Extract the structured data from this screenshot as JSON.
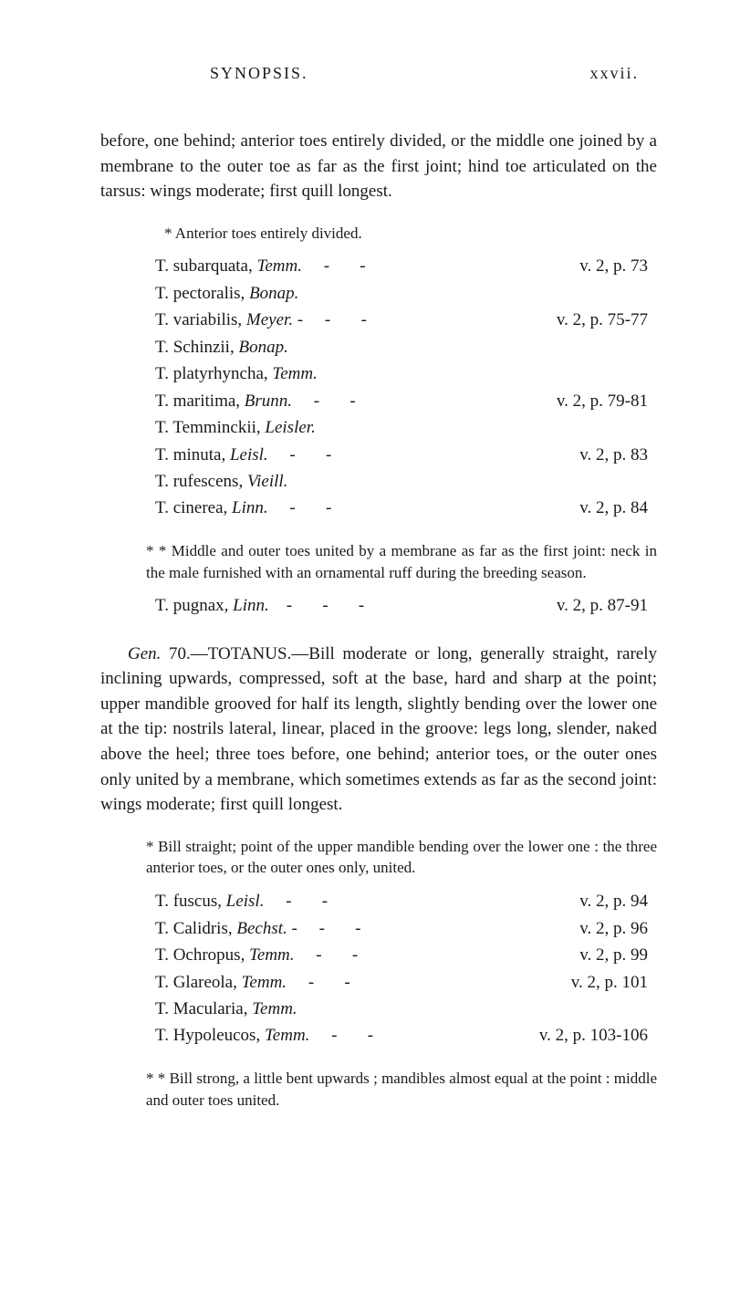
{
  "header": {
    "left": "SYNOPSIS.",
    "right": "xxvii."
  },
  "intro1": "before, one behind; anterior toes entirely divided, or the middle one joined by a membrane to the outer toe as far as the first joint; hind toe articulated on the tarsus: wings moderate; first quill longest.",
  "noteA": "* Anterior toes entirely divided.",
  "speciesA": [
    {
      "name": "T. subarquata, ",
      "auth": "Temm.",
      "ref": "v. 2, p. 73"
    },
    {
      "name": "T. pectoralis, ",
      "auth": "Bonap.",
      "ref": ""
    },
    {
      "name": "T. variabilis, ",
      "auth": "Meyer.",
      "suffix": " -",
      "ref": "v. 2, p. 75-77"
    },
    {
      "name": "T. Schinzii, ",
      "auth": "Bonap.",
      "ref": ""
    },
    {
      "name": "T. platyrhyncha, ",
      "auth": "Temm.",
      "ref": ""
    },
    {
      "name": "T. maritima, ",
      "auth": "Brunn.",
      "ref": "v. 2, p. 79-81"
    },
    {
      "name": "T. Temminckii, ",
      "auth": "Leisler.",
      "ref": ""
    },
    {
      "name": "T. minuta, ",
      "auth": "Leisl.",
      "ref": "v. 2, p. 83"
    },
    {
      "name": "T. rufescens, ",
      "auth": "Vieill.",
      "ref": ""
    },
    {
      "name": "T. cinerea, ",
      "auth": "Linn.",
      "ref": "v. 2, p. 84"
    }
  ],
  "noteB": "* * Middle and outer toes united by a membrane as far as the first joint: neck in the male furnished with an ornamental ruff during the breeding season.",
  "speciesB": {
    "name": "T. pugnax, ",
    "auth": "Linn.",
    "ref": "v. 2, p. 87-91"
  },
  "genus70_prefix": "Gen.",
  "genus70_num": "70.—TOTANUS.—Bill",
  "genus70_rest": " moderate or long, generally straight, rarely inclining upwards, compressed, soft at the base, hard and sharp at the point; upper man­dible grooved for half its length, slightly bending over the lower one at the tip: nostrils lateral, linear, placed in the groove: legs long, slender, naked above the heel; three toes before, one behind; anterior toes, or the outer ones only united by a membrane, which sometimes extends as far as the second joint: wings moderate; first quill longest.",
  "noteC": "* Bill straight; point of the upper mandible bending over the lower one : the three anterior toes, or the outer ones only, united.",
  "speciesC": [
    {
      "name": "T. fuscus, ",
      "auth": "Leisl.",
      "ref": "v. 2, p. 94"
    },
    {
      "name": "T. Calidris, ",
      "auth": "Bechst.",
      "suffix": " -",
      "ref": "v. 2, p. 96"
    },
    {
      "name": "T. Ochropus, ",
      "auth": "Temm.",
      "ref": "v. 2, p. 99"
    },
    {
      "name": "T. Glareola, ",
      "auth": "Temm.",
      "ref": "v. 2, p. 101"
    },
    {
      "name": "T. Macularia, ",
      "auth": "Temm.",
      "ref": ""
    },
    {
      "name": "T. Hypoleucos, ",
      "auth": "Temm.",
      "ref": "v. 2, p. 103-106"
    }
  ],
  "noteD": "* * Bill strong, a little bent upwards ; mandibles almost equal at the point : middle and outer toes united."
}
